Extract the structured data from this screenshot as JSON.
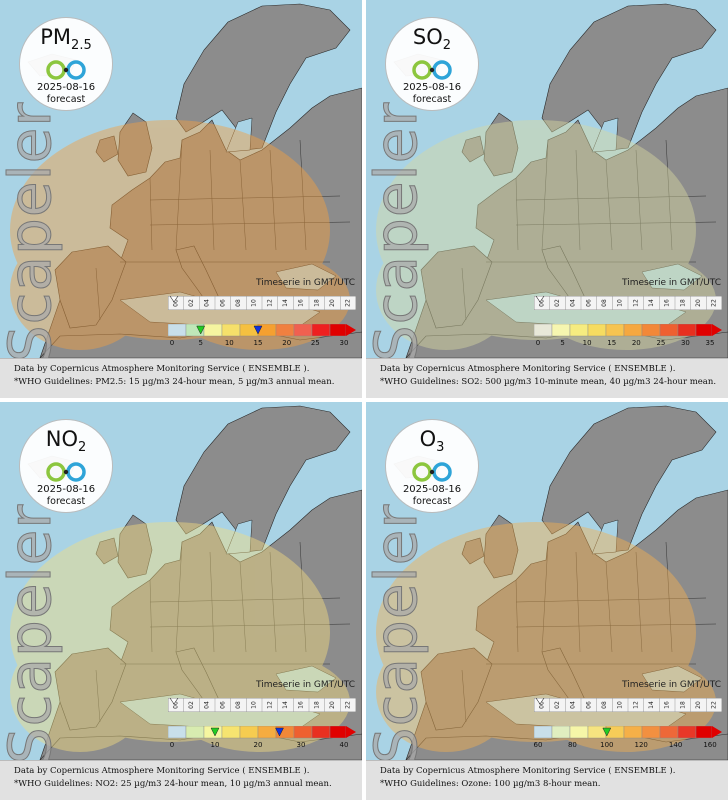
{
  "panels": [
    {
      "pollutant": "PM",
      "subscript": "2.5",
      "date": "2025-08-16",
      "forecast_label": "forecast",
      "watermark": "Scapeler",
      "timeserie_label": "Timeserie in GMT/UTC",
      "hours": [
        "00",
        "02",
        "04",
        "06",
        "08",
        "10",
        "12",
        "14",
        "16",
        "18",
        "20",
        "22"
      ],
      "legend_ticks": [
        "0",
        "5",
        "10",
        "15",
        "20",
        "25",
        "30"
      ],
      "legend_max_label": "Max",
      "who_label": "WHO",
      "who_markers": [
        {
          "value": 5,
          "color": "#22cc22"
        },
        {
          "value": 15,
          "color": "#1133dd"
        }
      ],
      "legend_colors": [
        "#c8dfea",
        "#bfe7b8",
        "#f5f5a0",
        "#f6e06a",
        "#f5c040",
        "#f5a030",
        "#f08040",
        "#f06050",
        "#ee2020",
        "#e00000"
      ],
      "haze": "#f5a040",
      "source_text": "Data by Copernicus Atmosphere Monitoring Service ( ENSEMBLE ).",
      "guideline_text": "*WHO Guidelines: PM2.5: 15 µg/m3 24-hour mean, 5 µg/m3 annual mean."
    },
    {
      "pollutant": "SO",
      "subscript": "2",
      "date": "2025-08-16",
      "forecast_label": "forecast",
      "watermark": "Scapeler",
      "timeserie_label": "Timeserie in GMT/UTC",
      "hours": [
        "00",
        "02",
        "04",
        "06",
        "08",
        "10",
        "12",
        "14",
        "16",
        "18",
        "20",
        "22"
      ],
      "legend_ticks": [
        "0",
        "5",
        "10",
        "15",
        "20",
        "25",
        "30",
        "35"
      ],
      "legend_max_label": "Max",
      "who_label": "",
      "who_markers": [],
      "legend_colors": [
        "#e8e8d8",
        "#f6f6b0",
        "#f6ec80",
        "#f6dc60",
        "#f6c450",
        "#f5a840",
        "#f28838",
        "#ee6030",
        "#e83020",
        "#e00000"
      ],
      "haze": "#d8d8a0",
      "source_text": "Data by Copernicus Atmosphere Monitoring Service ( ENSEMBLE ).",
      "guideline_text": "*WHO Guidelines: SO2: 500 µg/m3 10-minute mean, 40 µg/m3 24-hour mean."
    },
    {
      "pollutant": "NO",
      "subscript": "2",
      "date": "2025-08-16",
      "forecast_label": "forecast",
      "watermark": "Scapeler",
      "timeserie_label": "Timeserie in GMT/UTC",
      "hours": [
        "00",
        "02",
        "04",
        "06",
        "08",
        "10",
        "12",
        "14",
        "16",
        "18",
        "20",
        "22"
      ],
      "legend_ticks": [
        "0",
        "10",
        "20",
        "30",
        "40"
      ],
      "legend_max_label": "Max",
      "who_label": "WHO",
      "who_markers": [
        {
          "value": 10,
          "color": "#22cc22"
        },
        {
          "value": 25,
          "color": "#1133dd"
        }
      ],
      "legend_colors": [
        "#c8dfea",
        "#d8ecb0",
        "#f6f6a0",
        "#f6e470",
        "#f6cc50",
        "#f5ac40",
        "#f28838",
        "#ee6030",
        "#e83020",
        "#e00000"
      ],
      "haze": "#f4dc80",
      "source_text": "Data by Copernicus Atmosphere Monitoring Service ( ENSEMBLE ).",
      "guideline_text": "*WHO Guidelines: NO2: 25 µg/m3 24-hour mean, 10 µg/m3 annual mean."
    },
    {
      "pollutant": "O",
      "subscript": "3",
      "date": "2025-08-16",
      "forecast_label": "forecast",
      "watermark": "Scapeler",
      "timeserie_label": "Timeserie in GMT/UTC",
      "hours": [
        "00",
        "02",
        "04",
        "06",
        "08",
        "10",
        "12",
        "14",
        "16",
        "18",
        "20",
        "22"
      ],
      "legend_ticks": [
        "60",
        "80",
        "100",
        "120",
        "140",
        "160"
      ],
      "legend_max_label": "Max",
      "who_label": "WHO",
      "who_markers": [
        {
          "value": 100,
          "color": "#22cc22"
        }
      ],
      "legend_colors": [
        "#c8dfea",
        "#e0eec0",
        "#f6f6a8",
        "#f6e480",
        "#f6cc58",
        "#f5b048",
        "#f29040",
        "#ee6838",
        "#e83828",
        "#e00000"
      ],
      "haze": "#f5b050",
      "source_text": "Data by Copernicus Atmosphere Monitoring Service ( ENSEMBLE ).",
      "guideline_text": "*WHO Guidelines: Ozone: 100 µg/m3 8-hour mean."
    }
  ]
}
